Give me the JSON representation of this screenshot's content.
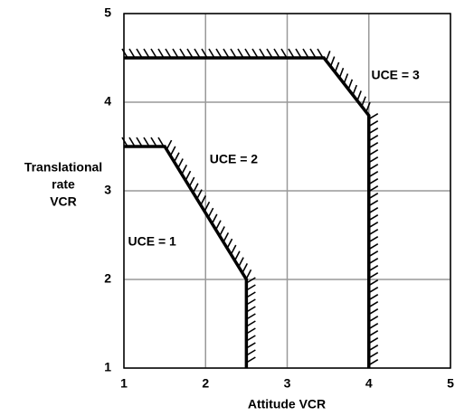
{
  "chart_data": {
    "type": "line",
    "xlabel": "Attitude VCR",
    "ylabel": [
      "Translational",
      "rate",
      "VCR"
    ],
    "xlim": [
      1,
      5
    ],
    "xticks": [
      1,
      2,
      3,
      4,
      5
    ],
    "ylim": [
      1,
      5
    ],
    "yticks": [
      1,
      2,
      3,
      4,
      5
    ],
    "grid": true,
    "series": [
      {
        "color": "#000000",
        "x": [
          1,
          1.5,
          2.5,
          2.5
        ],
        "values": [
          3.5,
          3.5,
          2,
          1
        ]
      },
      {
        "color": "#000000",
        "x": [
          1,
          3.45,
          4,
          4
        ],
        "values": [
          4.5,
          4.5,
          3.85,
          1
        ]
      }
    ],
    "annotations": [
      {
        "text": "UCE = 1",
        "x": 1.05,
        "y": 2.42
      },
      {
        "text": "UCE = 2",
        "x": 2.05,
        "y": 3.35
      },
      {
        "text": "UCE = 3",
        "x": 4.03,
        "y": 4.3
      }
    ]
  }
}
